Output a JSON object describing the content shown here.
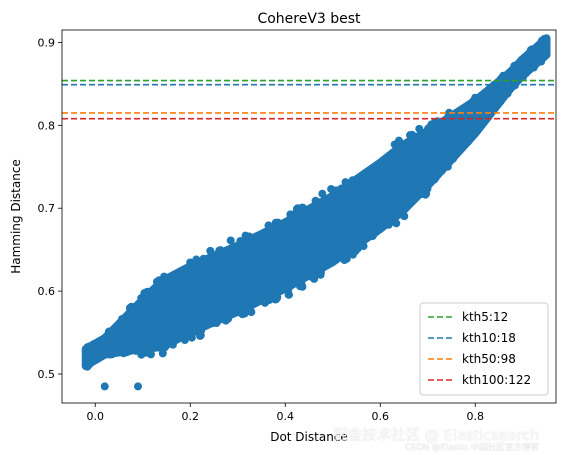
{
  "chart_data": {
    "type": "scatter",
    "title": "CohereV3 best",
    "xlabel": "Dot Distance",
    "ylabel": "Hamming Distance",
    "xlim": [
      -0.07,
      0.97
    ],
    "ylim": [
      0.465,
      0.915
    ],
    "xticks": [
      0.0,
      0.2,
      0.4,
      0.6,
      0.8
    ],
    "yticks": [
      0.5,
      0.6,
      0.7,
      0.8,
      0.9
    ],
    "xtick_labels": [
      "0.0",
      "0.2",
      "0.4",
      "0.6",
      "0.8"
    ],
    "ytick_labels": [
      "0.5",
      "0.6",
      "0.7",
      "0.8",
      "0.9"
    ],
    "point_color": "#1f77b4",
    "scatter_band": {
      "x_range": [
        -0.02,
        0.95
      ],
      "center_line": [
        [
          -0.02,
          0.52
        ],
        [
          0.1,
          0.56
        ],
        [
          0.2,
          0.59
        ],
        [
          0.3,
          0.615
        ],
        [
          0.4,
          0.643
        ],
        [
          0.5,
          0.675
        ],
        [
          0.6,
          0.715
        ],
        [
          0.7,
          0.76
        ],
        [
          0.8,
          0.81
        ],
        [
          0.9,
          0.87
        ],
        [
          0.95,
          0.895
        ]
      ],
      "spread": 0.04,
      "extreme_points": [
        [
          0.94,
          0.895
        ],
        [
          0.93,
          0.894
        ],
        [
          0.02,
          0.485
        ],
        [
          0.09,
          0.485
        ]
      ]
    },
    "hlines": [
      {
        "name": "kth5:12",
        "y": 0.854,
        "color": "#2ca02c"
      },
      {
        "name": "kth10:18",
        "y": 0.849,
        "color": "#1f77b4"
      },
      {
        "name": "kth50:98",
        "y": 0.815,
        "color": "#ff7f0e"
      },
      {
        "name": "kth100:122",
        "y": 0.808,
        "color": "#d62728"
      }
    ],
    "grid": false,
    "legend_position": "lower-right"
  },
  "watermark": {
    "main": "掘金技术社区 @ Elasticsearch",
    "sub": "CSDN @Elastic 中国社区官方博客"
  }
}
